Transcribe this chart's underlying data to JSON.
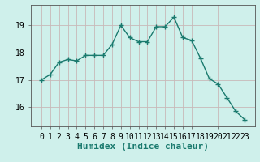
{
  "x": [
    0,
    1,
    2,
    3,
    4,
    5,
    6,
    7,
    8,
    9,
    10,
    11,
    12,
    13,
    14,
    15,
    16,
    17,
    18,
    19,
    20,
    21,
    22,
    23
  ],
  "y": [
    17.0,
    17.2,
    17.65,
    17.75,
    17.7,
    17.9,
    17.9,
    17.9,
    18.3,
    19.0,
    18.55,
    18.4,
    18.4,
    18.95,
    18.95,
    19.3,
    18.55,
    18.45,
    17.8,
    17.05,
    16.85,
    16.35,
    15.85,
    15.55
  ],
  "line_color": "#1a7a6e",
  "marker": "+",
  "marker_size": 4,
  "marker_lw": 1.0,
  "bg_color": "#cff0eb",
  "grid_color_major": "#c8b8b8",
  "grid_color_minor": "#dde8e6",
  "xlabel": "Humidex (Indice chaleur)",
  "xlabel_fontsize": 8,
  "tick_fontsize": 7,
  "ylim": [
    15.3,
    19.75
  ],
  "yticks": [
    16,
    17,
    18,
    19
  ],
  "xticks": [
    0,
    1,
    2,
    3,
    4,
    5,
    6,
    7,
    8,
    9,
    10,
    11,
    12,
    13,
    14,
    15,
    16,
    17,
    18,
    19,
    20,
    21,
    22,
    23
  ],
  "line_width": 1.0
}
